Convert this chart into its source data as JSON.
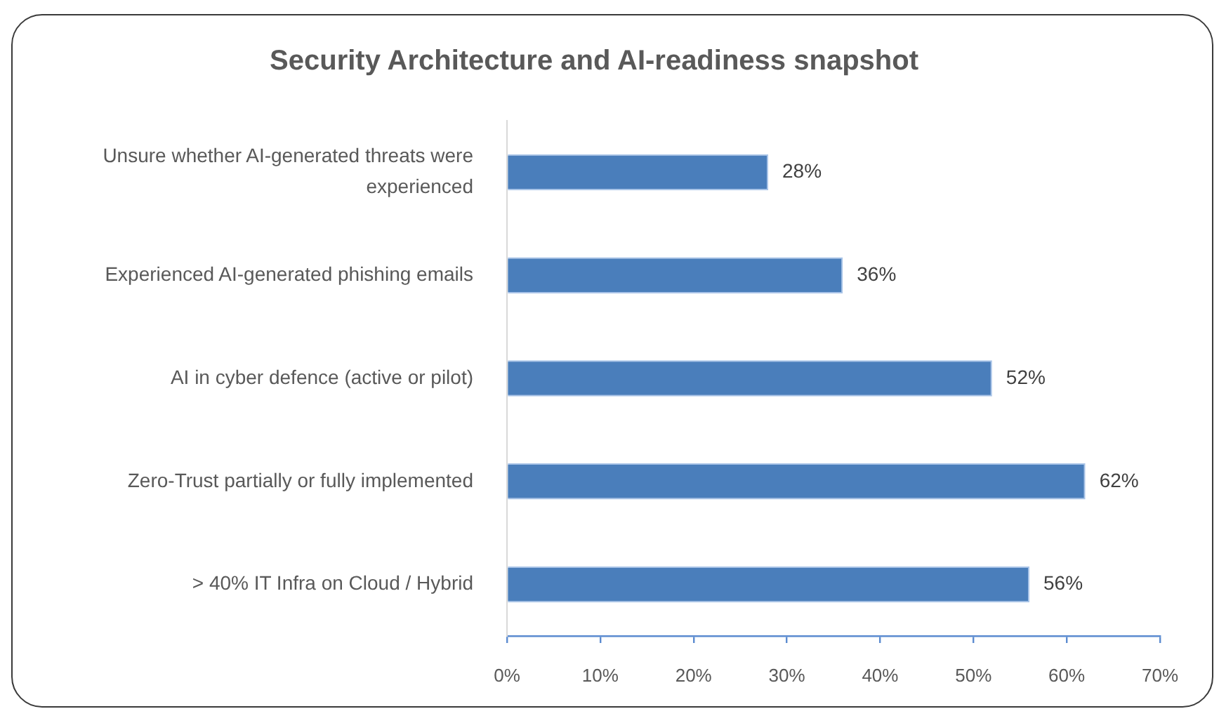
{
  "chart_data": {
    "type": "bar",
    "orientation": "horizontal",
    "title": "Security Architecture and AI-readiness snapshot",
    "categories": [
      "Unsure whether AI-generated threats were experienced",
      "Experienced AI-generated phishing emails",
      "AI in cyber defence (active or pilot)",
      "Zero-Trust partially or fully implemented",
      "> 40% IT Infra on Cloud / Hybrid"
    ],
    "values": [
      28,
      36,
      52,
      62,
      56
    ],
    "value_labels": [
      "28%",
      "36%",
      "52%",
      "62%",
      "56%"
    ],
    "color": "#4a7ebb",
    "xlim": [
      0,
      70
    ],
    "xticks": [
      {
        "value": 0,
        "label": "0%"
      },
      {
        "value": 10,
        "label": "10%"
      },
      {
        "value": 20,
        "label": "20%"
      },
      {
        "value": 30,
        "label": "30%"
      },
      {
        "value": 40,
        "label": "40%"
      },
      {
        "value": 50,
        "label": "50%"
      },
      {
        "value": 60,
        "label": "60%"
      },
      {
        "value": 70,
        "label": "70%"
      }
    ]
  }
}
